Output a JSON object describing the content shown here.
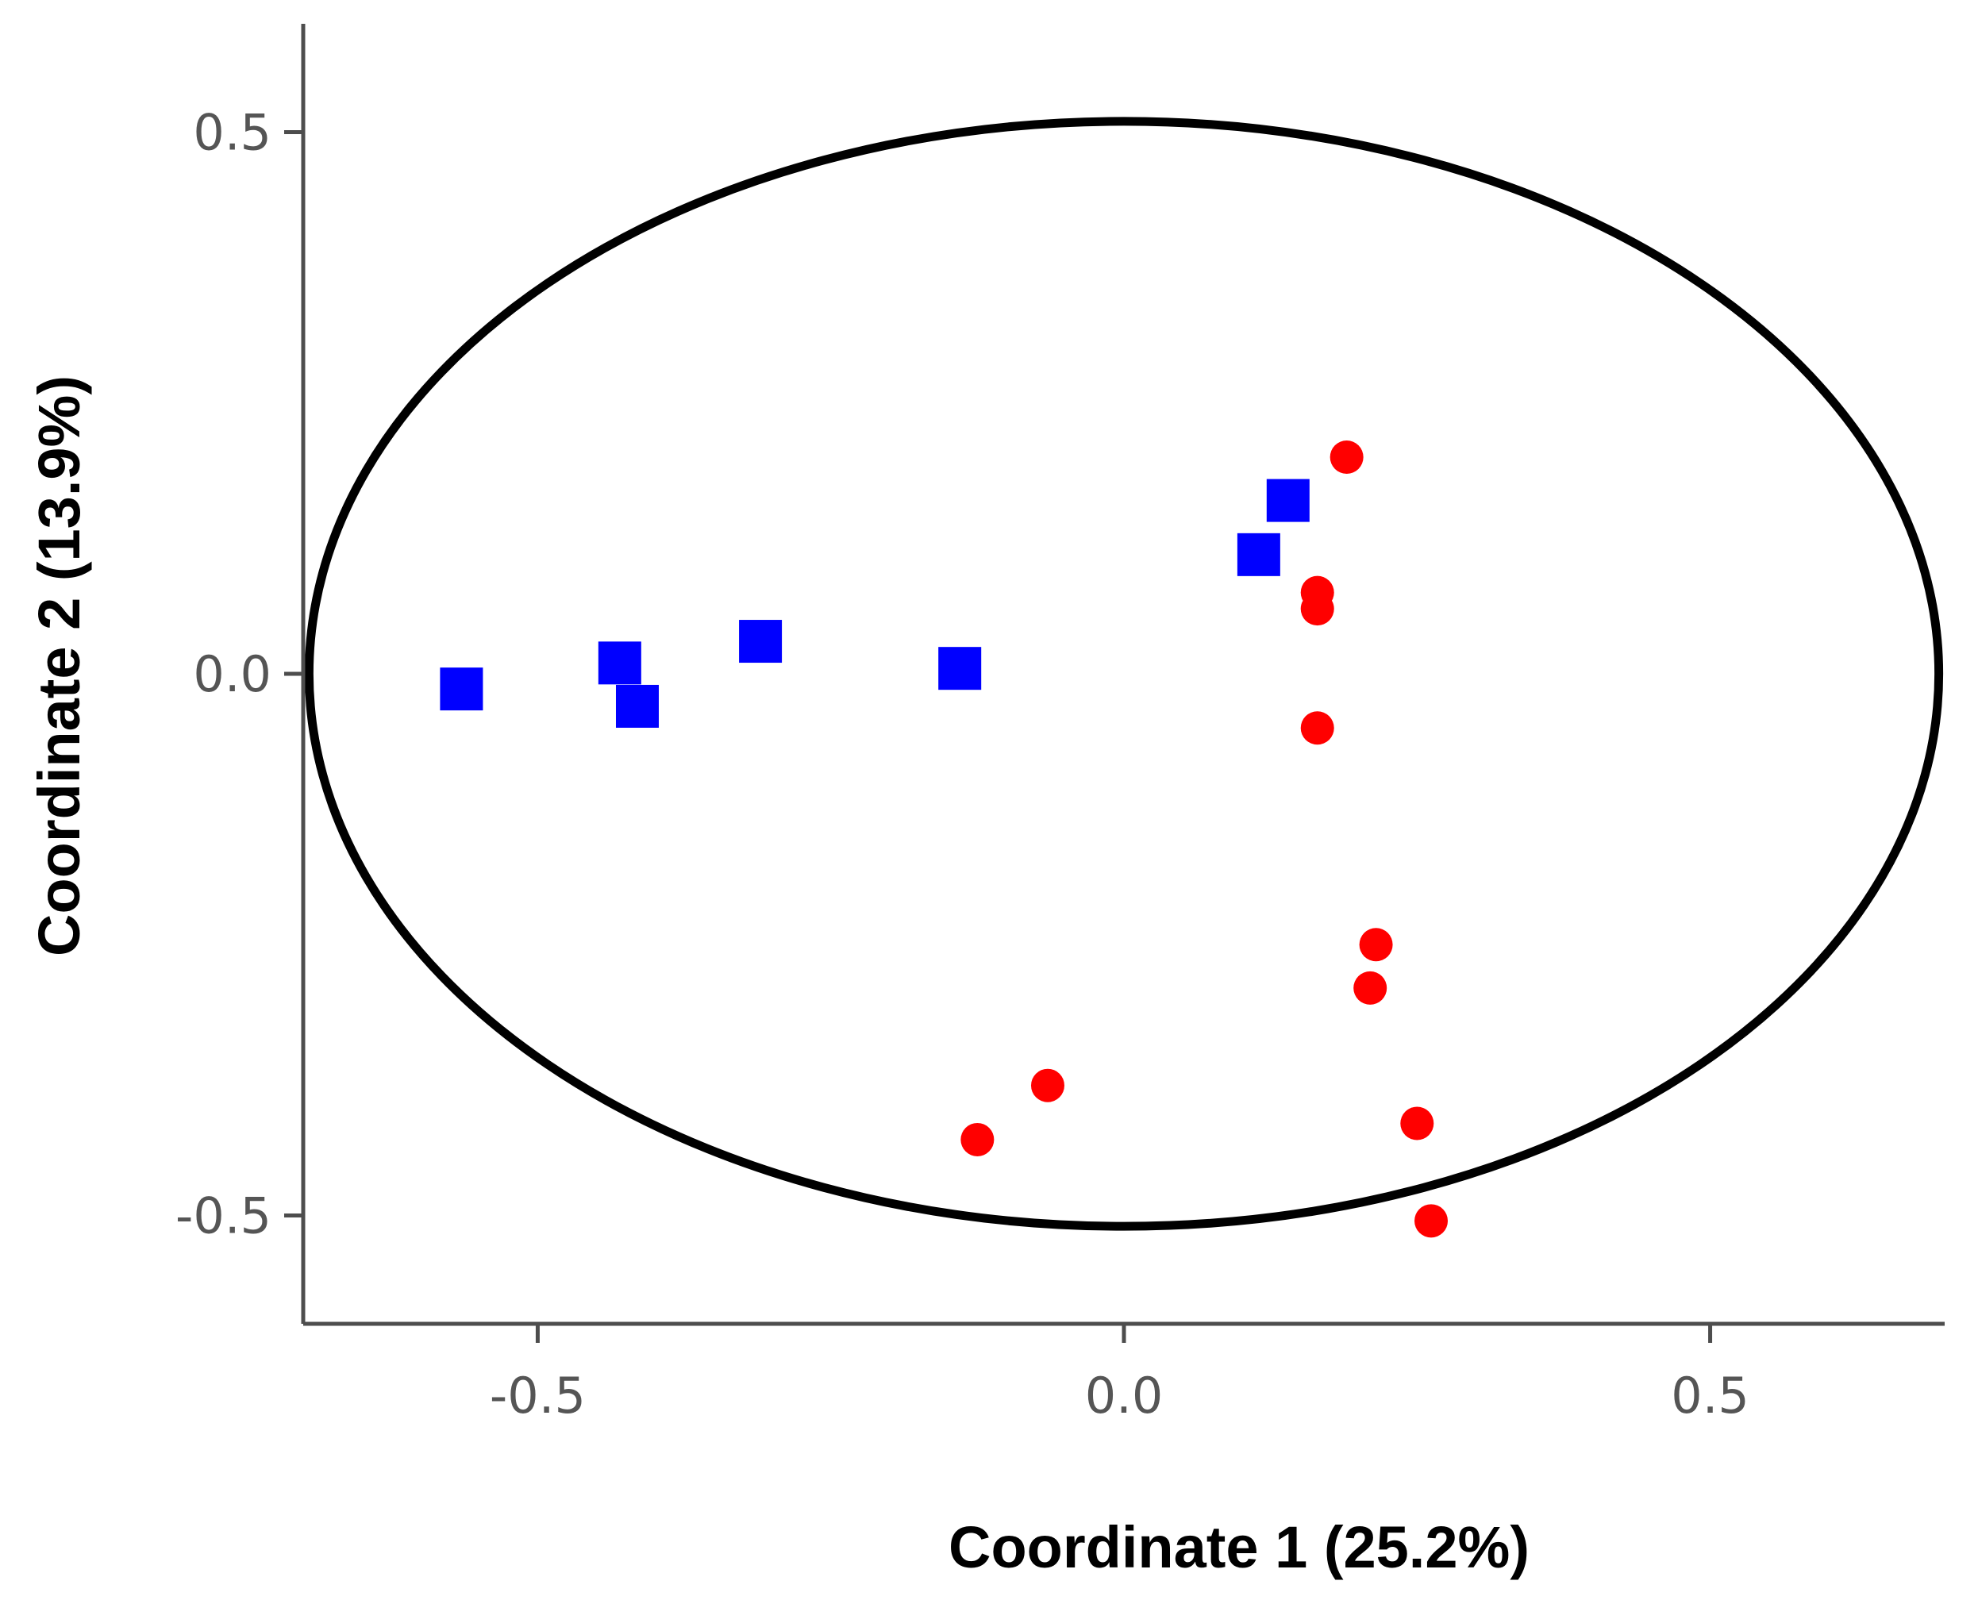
{
  "chart_data": {
    "type": "scatter",
    "xlabel": "Coordinate 1 (25.2%)",
    "ylabel": "Coordinate 2 (13.9%)",
    "xlim": [
      -0.7,
      0.7
    ],
    "ylim": [
      -0.6,
      0.6
    ],
    "xticks": [
      "-0.5",
      "0.0",
      "0.5"
    ],
    "yticks": [
      "0.5",
      "0.0",
      "-0.5"
    ],
    "grid": false,
    "legend": "none",
    "series": [
      {
        "marker": "square",
        "color": "#0000ff",
        "points": [
          {
            "x": -0.565,
            "y": -0.014
          },
          {
            "x": -0.43,
            "y": 0.01
          },
          {
            "x": -0.415,
            "y": -0.03
          },
          {
            "x": -0.31,
            "y": 0.03
          },
          {
            "x": -0.14,
            "y": 0.005
          },
          {
            "x": 0.115,
            "y": 0.11
          },
          {
            "x": 0.14,
            "y": 0.16
          }
        ]
      },
      {
        "marker": "circle",
        "color": "#ff0000",
        "points": [
          {
            "x": 0.19,
            "y": 0.2
          },
          {
            "x": 0.165,
            "y": 0.075
          },
          {
            "x": 0.165,
            "y": 0.06
          },
          {
            "x": 0.165,
            "y": -0.05
          },
          {
            "x": 0.215,
            "y": -0.25
          },
          {
            "x": 0.21,
            "y": -0.29
          },
          {
            "x": -0.065,
            "y": -0.38
          },
          {
            "x": -0.125,
            "y": -0.43
          },
          {
            "x": 0.25,
            "y": -0.415
          },
          {
            "x": 0.262,
            "y": -0.505
          }
        ]
      }
    ],
    "ellipse": {
      "cx": 0.0,
      "cy": 0.0,
      "rx": 0.695,
      "ry": 0.51,
      "color": "#000000"
    }
  }
}
